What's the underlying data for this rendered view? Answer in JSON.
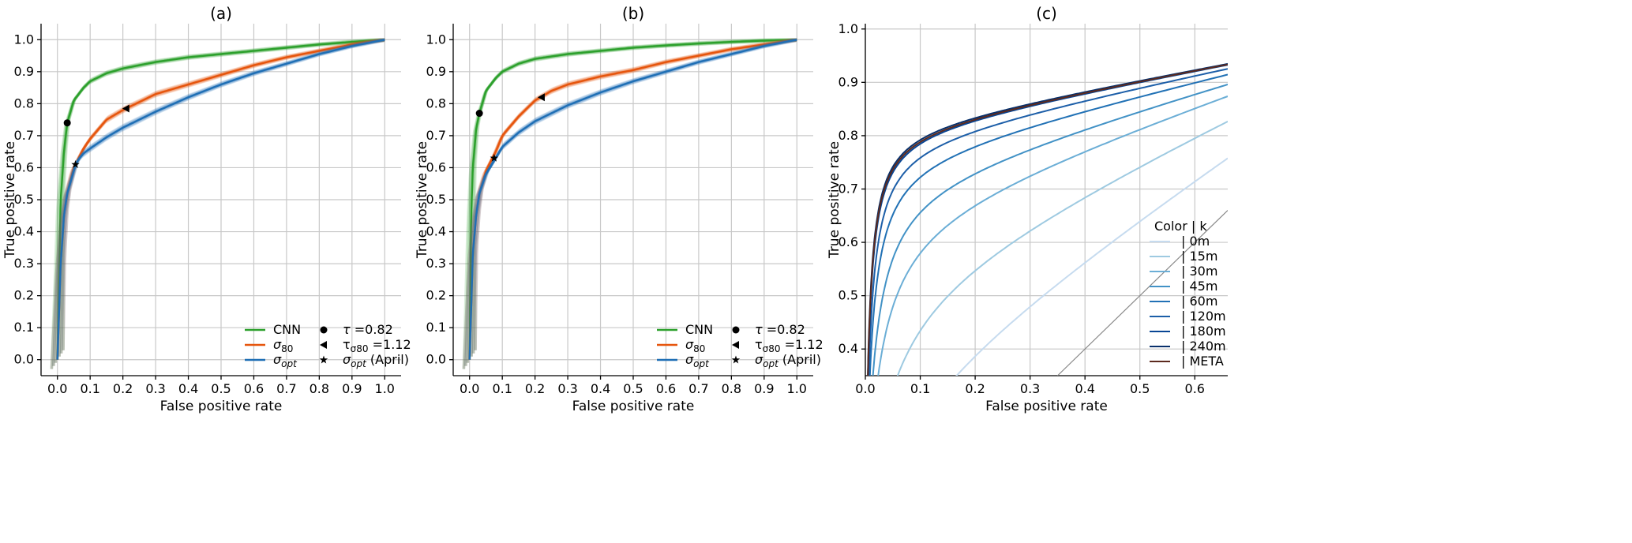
{
  "chart_data": [
    {
      "type": "line",
      "title": "(a)",
      "xlabel": "False positive rate",
      "ylabel": "True positive rate",
      "xlim": [
        -0.05,
        1.05
      ],
      "ylim": [
        -0.05,
        1.05
      ],
      "xticks": [
        "0.0",
        "0.1",
        "0.2",
        "0.3",
        "0.4",
        "0.5",
        "0.6",
        "0.7",
        "0.8",
        "0.9",
        "1.0"
      ],
      "yticks": [
        "0.0",
        "0.1",
        "0.2",
        "0.3",
        "0.4",
        "0.5",
        "0.6",
        "0.7",
        "0.8",
        "0.9",
        "1.0"
      ],
      "grid": true,
      "legend_position": "lower-right",
      "series": [
        {
          "name": "CNN",
          "color": "#2ca02c",
          "x": [
            0,
            0.01,
            0.02,
            0.03,
            0.05,
            0.08,
            0.1,
            0.15,
            0.2,
            0.3,
            0.4,
            0.5,
            0.6,
            0.7,
            0.8,
            0.9,
            1.0
          ],
          "y": [
            0,
            0.5,
            0.65,
            0.74,
            0.81,
            0.85,
            0.87,
            0.895,
            0.91,
            0.93,
            0.945,
            0.955,
            0.965,
            0.975,
            0.985,
            0.993,
            1.0
          ]
        },
        {
          "name": "σ80",
          "color": "#e6550d",
          "x": [
            0,
            0.01,
            0.02,
            0.03,
            0.05,
            0.08,
            0.1,
            0.15,
            0.2,
            0.3,
            0.4,
            0.5,
            0.6,
            0.7,
            0.8,
            0.9,
            1.0
          ],
          "y": [
            0,
            0.3,
            0.45,
            0.52,
            0.6,
            0.66,
            0.69,
            0.75,
            0.78,
            0.83,
            0.86,
            0.89,
            0.92,
            0.945,
            0.965,
            0.985,
            1.0
          ]
        },
        {
          "name": "σopt",
          "color": "#1f6fb5",
          "x": [
            0,
            0.01,
            0.02,
            0.03,
            0.05,
            0.06,
            0.08,
            0.1,
            0.15,
            0.2,
            0.3,
            0.4,
            0.5,
            0.6,
            0.7,
            0.8,
            0.9,
            1.0
          ],
          "y": [
            0,
            0.3,
            0.45,
            0.52,
            0.59,
            0.62,
            0.645,
            0.66,
            0.695,
            0.725,
            0.775,
            0.82,
            0.86,
            0.895,
            0.925,
            0.955,
            0.98,
            1.0
          ]
        }
      ],
      "markers": [
        {
          "label": "τ =0.82",
          "symbol": "circle",
          "x": 0.03,
          "y": 0.74
        },
        {
          "label": "τσ80 =1.12",
          "symbol": "triangle-left",
          "x": 0.21,
          "y": 0.785
        },
        {
          "label": "σopt (April)",
          "symbol": "star",
          "x": 0.055,
          "y": 0.61
        }
      ]
    },
    {
      "type": "line",
      "title": "(b)",
      "xlabel": "False positive rate",
      "ylabel": "True positive rate",
      "xlim": [
        -0.05,
        1.05
      ],
      "ylim": [
        -0.05,
        1.05
      ],
      "xticks": [
        "0.0",
        "0.1",
        "0.2",
        "0.3",
        "0.4",
        "0.5",
        "0.6",
        "0.7",
        "0.8",
        "0.9",
        "1.0"
      ],
      "yticks": [
        "0.0",
        "0.1",
        "0.2",
        "0.3",
        "0.4",
        "0.5",
        "0.6",
        "0.7",
        "0.8",
        "0.9",
        "1.0"
      ],
      "grid": true,
      "legend_position": "lower-right",
      "series": [
        {
          "name": "CNN",
          "color": "#2ca02c",
          "x": [
            0,
            0.005,
            0.01,
            0.02,
            0.03,
            0.05,
            0.08,
            0.1,
            0.15,
            0.2,
            0.3,
            0.4,
            0.5,
            0.6,
            0.7,
            0.8,
            0.9,
            1.0
          ],
          "y": [
            0,
            0.45,
            0.6,
            0.72,
            0.77,
            0.84,
            0.88,
            0.9,
            0.925,
            0.94,
            0.955,
            0.965,
            0.975,
            0.982,
            0.988,
            0.993,
            0.997,
            1.0
          ]
        },
        {
          "name": "σ80",
          "color": "#e6550d",
          "x": [
            0,
            0.01,
            0.02,
            0.03,
            0.05,
            0.08,
            0.1,
            0.15,
            0.2,
            0.25,
            0.3,
            0.4,
            0.5,
            0.6,
            0.7,
            0.8,
            0.9,
            1.0
          ],
          "y": [
            0,
            0.33,
            0.45,
            0.52,
            0.59,
            0.65,
            0.7,
            0.76,
            0.81,
            0.84,
            0.86,
            0.885,
            0.905,
            0.93,
            0.95,
            0.97,
            0.985,
            1.0
          ]
        },
        {
          "name": "σopt",
          "color": "#1f6fb5",
          "x": [
            0,
            0.01,
            0.02,
            0.03,
            0.05,
            0.08,
            0.1,
            0.15,
            0.2,
            0.3,
            0.4,
            0.5,
            0.6,
            0.7,
            0.8,
            0.9,
            1.0
          ],
          "y": [
            0,
            0.33,
            0.45,
            0.52,
            0.58,
            0.63,
            0.665,
            0.71,
            0.745,
            0.795,
            0.835,
            0.87,
            0.9,
            0.93,
            0.955,
            0.98,
            1.0
          ]
        }
      ],
      "markers": [
        {
          "label": "τ =0.82",
          "symbol": "circle",
          "x": 0.03,
          "y": 0.77
        },
        {
          "label": "τσ80 =1.12",
          "symbol": "triangle-left",
          "x": 0.22,
          "y": 0.82
        },
        {
          "label": "σopt (April)",
          "symbol": "star",
          "x": 0.075,
          "y": 0.63
        }
      ]
    },
    {
      "type": "line",
      "title": "(c)",
      "xlabel": "False positive rate",
      "ylabel": "True positive rate",
      "xlim": [
        0,
        0.66
      ],
      "ylim": [
        0.35,
        1.01
      ],
      "xticks": [
        "0.0",
        "0.1",
        "0.2",
        "0.3",
        "0.4",
        "0.5",
        "0.6"
      ],
      "yticks": [
        "0.4",
        "0.5",
        "0.6",
        "0.7",
        "0.8",
        "0.9",
        "1.0"
      ],
      "grid": true,
      "legend_position": "lower-right",
      "legend_header": "Color |   k",
      "diagonal": true,
      "series": [
        {
          "name": "| 0m",
          "color": "#c6dbef",
          "a": 0.68,
          "b": 0.075
        },
        {
          "name": "| 15m",
          "color": "#9ecae1",
          "a": 0.48,
          "b": 0.04
        },
        {
          "name": "| 30m",
          "color": "#6baed6",
          "a": 0.35,
          "b": 0.022
        },
        {
          "name": "| 45m",
          "color": "#4292c6",
          "a": 0.29,
          "b": 0.015
        },
        {
          "name": "| 60m",
          "color": "#2171b5",
          "a": 0.24,
          "b": 0.01
        },
        {
          "name": "| 120m",
          "color": "#1c5ea8",
          "a": 0.21,
          "b": 0.008
        },
        {
          "name": "| 180m",
          "color": "#084594",
          "a": 0.19,
          "b": 0.0065
        },
        {
          "name": "| 240m",
          "color": "#08306b",
          "a": 0.185,
          "b": 0.006
        },
        {
          "name": "| META",
          "color": "#5c2a1e",
          "a": 0.188,
          "b": 0.0062
        }
      ]
    }
  ]
}
